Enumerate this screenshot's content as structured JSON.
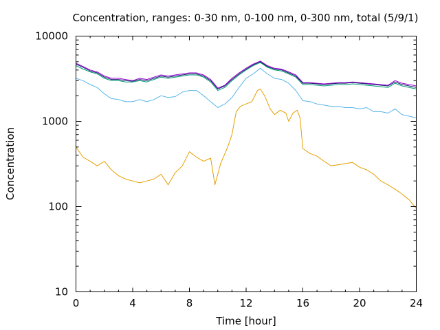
{
  "chart_data": {
    "type": "line",
    "title": "Concentration, ranges: 0-30 nm, 0-100 nm, 0-300 nm, total (5/9/1)",
    "xlabel": "Time [hour]",
    "ylabel": "Concentration",
    "xlim": [
      0,
      24
    ],
    "ylim": [
      10,
      10000
    ],
    "yscale": "log",
    "grid": false,
    "xticks": [
      {
        "value": 0,
        "label": "0"
      },
      {
        "value": 4,
        "label": "4"
      },
      {
        "value": 8,
        "label": "8"
      },
      {
        "value": 12,
        "label": "12"
      },
      {
        "value": 16,
        "label": "16"
      },
      {
        "value": 20,
        "label": "20"
      },
      {
        "value": 24,
        "label": "24"
      }
    ],
    "yticks": [
      {
        "value": 10,
        "label": "10"
      },
      {
        "value": 100,
        "label": "100"
      },
      {
        "value": 1000,
        "label": "1000"
      },
      {
        "value": 10000,
        "label": "10000"
      }
    ],
    "series": [
      {
        "color": "#e69f00",
        "x": [
          0,
          0.5,
          1,
          1.5,
          2,
          2.5,
          3,
          3.5,
          4,
          4.5,
          5,
          5.5,
          6,
          6.5,
          7,
          7.5,
          8,
          8.5,
          9,
          9.5,
          9.8,
          10.2,
          10.7,
          11,
          11.3,
          11.6,
          12,
          12.4,
          12.8,
          13,
          13.3,
          13.7,
          14,
          14.4,
          14.8,
          15,
          15.3,
          15.6,
          15.8,
          16,
          16.5,
          17,
          17.5,
          18,
          18.5,
          19,
          19.5,
          20,
          20.5,
          21,
          21.5,
          22,
          22.5,
          23,
          23.5,
          24
        ],
        "y": [
          500,
          380,
          340,
          300,
          340,
          270,
          230,
          210,
          200,
          190,
          200,
          210,
          240,
          180,
          250,
          300,
          440,
          380,
          340,
          370,
          180,
          320,
          500,
          700,
          1300,
          1500,
          1600,
          1700,
          2300,
          2400,
          2000,
          1400,
          1200,
          1350,
          1250,
          1000,
          1250,
          1350,
          1100,
          480,
          420,
          390,
          340,
          300,
          310,
          320,
          330,
          290,
          270,
          240,
          200,
          180,
          160,
          140,
          120,
          95
        ]
      },
      {
        "color": "#56b4e9",
        "x": [
          0,
          0.5,
          1,
          1.5,
          2,
          2.5,
          3,
          3.5,
          4,
          4.5,
          5,
          5.5,
          6,
          6.5,
          7,
          7.5,
          8,
          8.5,
          9,
          9.5,
          10,
          10.5,
          11,
          11.5,
          12,
          12.5,
          13,
          13.5,
          14,
          14.5,
          15,
          15.5,
          16,
          16.5,
          17,
          17.5,
          18,
          18.5,
          19,
          19.5,
          20,
          20.5,
          21,
          21.5,
          22,
          22.5,
          23,
          23.5,
          24
        ],
        "y": [
          3200,
          3000,
          2700,
          2500,
          2100,
          1850,
          1800,
          1700,
          1700,
          1800,
          1700,
          1800,
          2000,
          1900,
          1950,
          2200,
          2300,
          2300,
          2000,
          1700,
          1450,
          1600,
          1900,
          2500,
          3200,
          3600,
          4200,
          3600,
          3200,
          3100,
          2800,
          2300,
          1750,
          1700,
          1600,
          1550,
          1500,
          1500,
          1450,
          1450,
          1400,
          1450,
          1300,
          1300,
          1250,
          1400,
          1200,
          1150,
          1100
        ]
      },
      {
        "color": "#009e73",
        "x": [
          0,
          0.5,
          1,
          1.5,
          2,
          2.5,
          3,
          3.5,
          4,
          4.5,
          5,
          5.5,
          6,
          6.5,
          7,
          7.5,
          8,
          8.5,
          9,
          9.5,
          10,
          10.5,
          11,
          11.5,
          12,
          12.5,
          13,
          13.5,
          14,
          14.5,
          15,
          15.5,
          16,
          16.5,
          17,
          17.5,
          18,
          18.5,
          19,
          19.5,
          20,
          20.5,
          21,
          21.5,
          22,
          22.5,
          23,
          23.5,
          24
        ],
        "y": [
          4500,
          4100,
          3800,
          3600,
          3200,
          3000,
          3000,
          2900,
          2900,
          3000,
          2900,
          3100,
          3300,
          3200,
          3300,
          3400,
          3500,
          3500,
          3300,
          2900,
          2300,
          2500,
          3000,
          3500,
          4000,
          4500,
          4900,
          4300,
          4000,
          3900,
          3600,
          3300,
          2700,
          2700,
          2650,
          2600,
          2650,
          2700,
          2700,
          2750,
          2700,
          2650,
          2600,
          2550,
          2500,
          2800,
          2600,
          2500,
          2400
        ]
      },
      {
        "color": "#9400d3",
        "x": [
          0,
          0.5,
          1,
          1.5,
          2,
          2.5,
          3,
          3.5,
          4,
          4.5,
          5,
          5.5,
          6,
          6.5,
          7,
          7.5,
          8,
          8.5,
          9,
          9.5,
          10,
          10.5,
          11,
          11.5,
          12,
          12.5,
          13,
          13.5,
          14,
          14.5,
          15,
          15.5,
          16,
          16.5,
          17,
          17.5,
          18,
          18.5,
          19,
          19.5,
          20,
          20.5,
          21,
          21.5,
          22,
          22.5,
          23,
          23.5,
          24
        ],
        "y": [
          4800,
          4400,
          4000,
          3800,
          3400,
          3200,
          3200,
          3100,
          3000,
          3200,
          3100,
          3300,
          3500,
          3400,
          3500,
          3600,
          3700,
          3700,
          3500,
          3100,
          2450,
          2650,
          3200,
          3700,
          4200,
          4700,
          5100,
          4500,
          4200,
          4100,
          3800,
          3500,
          2850,
          2850,
          2800,
          2750,
          2800,
          2850,
          2850,
          2900,
          2850,
          2800,
          2750,
          2700,
          2650,
          3000,
          2800,
          2700,
          2600
        ]
      },
      {
        "color": "#1a1a6e",
        "x": [
          0,
          0.5,
          1,
          1.5,
          2,
          2.5,
          3,
          3.5,
          4,
          4.5,
          5,
          5.5,
          6,
          6.5,
          7,
          7.5,
          8,
          8.5,
          9,
          9.5,
          10,
          10.5,
          11,
          11.5,
          12,
          12.5,
          13,
          13.5,
          14,
          14.5,
          15,
          15.5,
          16,
          16.5,
          17,
          17.5,
          18,
          18.5,
          19,
          19.5,
          20,
          20.5,
          21,
          21.5,
          22,
          22.5,
          23,
          23.5,
          24
        ],
        "y": [
          4700,
          4300,
          3900,
          3700,
          3300,
          3100,
          3100,
          3000,
          2950,
          3100,
          3000,
          3200,
          3400,
          3300,
          3400,
          3500,
          3600,
          3600,
          3400,
          3000,
          2400,
          2600,
          3100,
          3600,
          4100,
          4600,
          5000,
          4400,
          4100,
          4000,
          3700,
          3400,
          2800,
          2800,
          2750,
          2700,
          2750,
          2800,
          2800,
          2850,
          2800,
          2750,
          2700,
          2650,
          2600,
          2900,
          2700,
          2600,
          2500
        ]
      }
    ]
  }
}
